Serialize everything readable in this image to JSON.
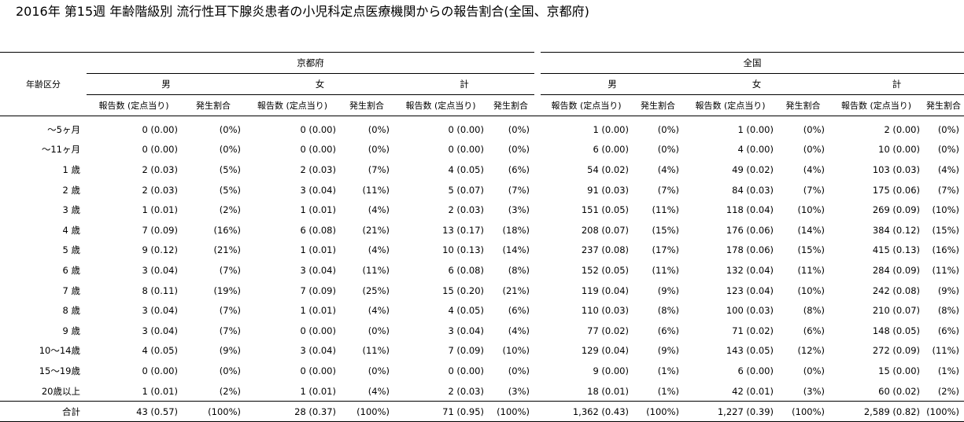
{
  "title": "2016年 第15週 年齢階級別 流行性耳下腺炎患者の小児科定点医療機関からの報告割合(全国、京都府)",
  "headers": {
    "age_col": "年齢区分",
    "regions": [
      "京都府",
      "全国"
    ],
    "sexes": [
      "男",
      "女",
      "計"
    ],
    "count_label": "報告数 (定点当り)",
    "pct_label": "発生割合"
  },
  "rows": [
    {
      "age": "～5ヶ月",
      "v": [
        "0 (0.00)",
        "(0%)",
        "0 (0.00)",
        "(0%)",
        "0 (0.00)",
        "(0%)",
        "1 (0.00)",
        "(0%)",
        "1 (0.00)",
        "(0%)",
        "2 (0.00)",
        "(0%)"
      ]
    },
    {
      "age": "～11ヶ月",
      "v": [
        "0 (0.00)",
        "(0%)",
        "0 (0.00)",
        "(0%)",
        "0 (0.00)",
        "(0%)",
        "6 (0.00)",
        "(0%)",
        "4 (0.00)",
        "(0%)",
        "10 (0.00)",
        "(0%)"
      ]
    },
    {
      "age": "1 歳",
      "v": [
        "2 (0.03)",
        "(5%)",
        "2 (0.03)",
        "(7%)",
        "4 (0.05)",
        "(6%)",
        "54 (0.02)",
        "(4%)",
        "49 (0.02)",
        "(4%)",
        "103 (0.03)",
        "(4%)"
      ]
    },
    {
      "age": "2 歳",
      "v": [
        "2 (0.03)",
        "(5%)",
        "3 (0.04)",
        "(11%)",
        "5 (0.07)",
        "(7%)",
        "91 (0.03)",
        "(7%)",
        "84 (0.03)",
        "(7%)",
        "175 (0.06)",
        "(7%)"
      ]
    },
    {
      "age": "3 歳",
      "v": [
        "1 (0.01)",
        "(2%)",
        "1 (0.01)",
        "(4%)",
        "2 (0.03)",
        "(3%)",
        "151 (0.05)",
        "(11%)",
        "118 (0.04)",
        "(10%)",
        "269 (0.09)",
        "(10%)"
      ]
    },
    {
      "age": "4 歳",
      "v": [
        "7 (0.09)",
        "(16%)",
        "6 (0.08)",
        "(21%)",
        "13 (0.17)",
        "(18%)",
        "208 (0.07)",
        "(15%)",
        "176 (0.06)",
        "(14%)",
        "384 (0.12)",
        "(15%)"
      ]
    },
    {
      "age": "5 歳",
      "v": [
        "9 (0.12)",
        "(21%)",
        "1 (0.01)",
        "(4%)",
        "10 (0.13)",
        "(14%)",
        "237 (0.08)",
        "(17%)",
        "178 (0.06)",
        "(15%)",
        "415 (0.13)",
        "(16%)"
      ]
    },
    {
      "age": "6 歳",
      "v": [
        "3 (0.04)",
        "(7%)",
        "3 (0.04)",
        "(11%)",
        "6 (0.08)",
        "(8%)",
        "152 (0.05)",
        "(11%)",
        "132 (0.04)",
        "(11%)",
        "284 (0.09)",
        "(11%)"
      ]
    },
    {
      "age": "7 歳",
      "v": [
        "8 (0.11)",
        "(19%)",
        "7 (0.09)",
        "(25%)",
        "15 (0.20)",
        "(21%)",
        "119 (0.04)",
        "(9%)",
        "123 (0.04)",
        "(10%)",
        "242 (0.08)",
        "(9%)"
      ]
    },
    {
      "age": "8 歳",
      "v": [
        "3 (0.04)",
        "(7%)",
        "1 (0.01)",
        "(4%)",
        "4 (0.05)",
        "(6%)",
        "110 (0.03)",
        "(8%)",
        "100 (0.03)",
        "(8%)",
        "210 (0.07)",
        "(8%)"
      ]
    },
    {
      "age": "9 歳",
      "v": [
        "3 (0.04)",
        "(7%)",
        "0 (0.00)",
        "(0%)",
        "3 (0.04)",
        "(4%)",
        "77 (0.02)",
        "(6%)",
        "71 (0.02)",
        "(6%)",
        "148 (0.05)",
        "(6%)"
      ]
    },
    {
      "age": "10～14歳",
      "v": [
        "4 (0.05)",
        "(9%)",
        "3 (0.04)",
        "(11%)",
        "7 (0.09)",
        "(10%)",
        "129 (0.04)",
        "(9%)",
        "143 (0.05)",
        "(12%)",
        "272 (0.09)",
        "(11%)"
      ]
    },
    {
      "age": "15～19歳",
      "v": [
        "0 (0.00)",
        "(0%)",
        "0 (0.00)",
        "(0%)",
        "0 (0.00)",
        "(0%)",
        "9 (0.00)",
        "(1%)",
        "6 (0.00)",
        "(0%)",
        "15 (0.00)",
        "(1%)"
      ]
    },
    {
      "age": "20歳以上",
      "v": [
        "1 (0.01)",
        "(2%)",
        "1 (0.01)",
        "(4%)",
        "2 (0.03)",
        "(3%)",
        "18 (0.01)",
        "(1%)",
        "42 (0.01)",
        "(3%)",
        "60 (0.02)",
        "(2%)"
      ]
    }
  ],
  "total": {
    "age": "合計",
    "v": [
      "43 (0.57)",
      "(100%)",
      "28 (0.37)",
      "(100%)",
      "71 (0.95)",
      "(100%)",
      "1,362 (0.43)",
      "(100%)",
      "1,227 (0.39)",
      "(100%)",
      "2,589 (0.82)",
      "(100%)"
    ]
  }
}
